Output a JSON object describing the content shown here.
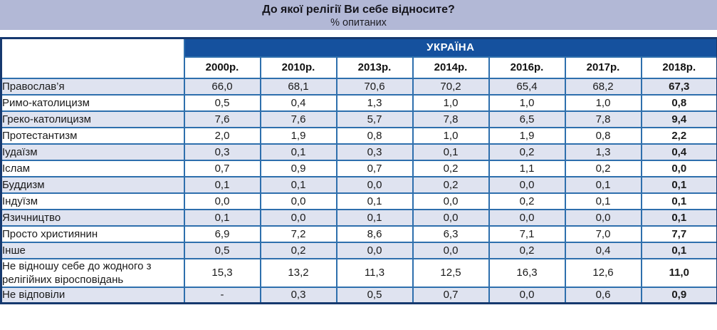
{
  "title": "До якої релігії Ви себе відносите?",
  "subtitle": "% опитаних",
  "table": {
    "region_header": "УКРАЇНА",
    "year_headers": [
      "2000р.",
      "2010р.",
      "2013р.",
      "2014р.",
      "2016р.",
      "2017р.",
      "2018р."
    ],
    "rows": [
      {
        "label": "Православ’я",
        "values": [
          "66,0",
          "68,1",
          "70,6",
          "70,2",
          "65,4",
          "68,2",
          "67,3"
        ]
      },
      {
        "label": "Римо-католицизм",
        "values": [
          "0,5",
          "0,4",
          "1,3",
          "1,0",
          "1,0",
          "1,0",
          "0,8"
        ]
      },
      {
        "label": "Греко-католицизм",
        "values": [
          "7,6",
          "7,6",
          "5,7",
          "7,8",
          "6,5",
          "7,8",
          "9,4"
        ]
      },
      {
        "label": "Протестантизм",
        "values": [
          "2,0",
          "1,9",
          "0,8",
          "1,0",
          "1,9",
          "0,8",
          "2,2"
        ]
      },
      {
        "label": "Іудаїзм",
        "values": [
          "0,3",
          "0,1",
          "0,3",
          "0,1",
          "0,2",
          "1,3",
          "0,4"
        ]
      },
      {
        "label": "Іслам",
        "values": [
          "0,7",
          "0,9",
          "0,7",
          "0,2",
          "1,1",
          "0,2",
          "0,0"
        ]
      },
      {
        "label": "Буддизм",
        "values": [
          "0,1",
          "0,1",
          "0,0",
          "0,2",
          "0,0",
          "0,1",
          "0,1"
        ]
      },
      {
        "label": "Індуїзм",
        "values": [
          "0,0",
          "0,0",
          "0,1",
          "0,0",
          "0,2",
          "0,1",
          "0,1"
        ]
      },
      {
        "label": "Язичництво",
        "values": [
          "0,1",
          "0,0",
          "0,1",
          "0,0",
          "0,0",
          "0,0",
          "0,1"
        ]
      },
      {
        "label": "Просто християнин",
        "values": [
          "6,9",
          "7,2",
          "8,6",
          "6,3",
          "7,1",
          "7,0",
          "7,7"
        ]
      },
      {
        "label": "Інше",
        "values": [
          "0,5",
          "0,2",
          "0,0",
          "0,0",
          "0,2",
          "0,4",
          "0,1"
        ]
      },
      {
        "label": "Не відношу себе до жодного з релігійних віросповідань",
        "values": [
          "15,3",
          "13,2",
          "11,3",
          "12,5",
          "16,3",
          "12,6",
          "11,0"
        ]
      },
      {
        "label": "Не відповіли",
        "values": [
          "-",
          "0,3",
          "0,5",
          "0,7",
          "0,0",
          "0,6",
          "0,9"
        ]
      }
    ]
  },
  "colors": {
    "title_band": "#b2b8d6",
    "region_band": "#15519e",
    "row_stripe": "#dfe3f0",
    "inner_border": "#2e6fad",
    "outer_border": "#16396f",
    "text": "#1a1a1a"
  },
  "chart_data": {
    "type": "table",
    "title": "До якої релігії Ви себе відносите?",
    "subtitle": "% опитаних",
    "region": "УКРАЇНА",
    "columns": [
      "2000р.",
      "2010р.",
      "2013р.",
      "2014р.",
      "2016р.",
      "2017р.",
      "2018р."
    ],
    "rows": [
      {
        "label": "Православ’я",
        "values": [
          66.0,
          68.1,
          70.6,
          70.2,
          65.4,
          68.2,
          67.3
        ]
      },
      {
        "label": "Римо-католицизм",
        "values": [
          0.5,
          0.4,
          1.3,
          1.0,
          1.0,
          1.0,
          0.8
        ]
      },
      {
        "label": "Греко-католицизм",
        "values": [
          7.6,
          7.6,
          5.7,
          7.8,
          6.5,
          7.8,
          9.4
        ]
      },
      {
        "label": "Протестантизм",
        "values": [
          2.0,
          1.9,
          0.8,
          1.0,
          1.9,
          0.8,
          2.2
        ]
      },
      {
        "label": "Іудаїзм",
        "values": [
          0.3,
          0.1,
          0.3,
          0.1,
          0.2,
          1.3,
          0.4
        ]
      },
      {
        "label": "Іслам",
        "values": [
          0.7,
          0.9,
          0.7,
          0.2,
          1.1,
          0.2,
          0.0
        ]
      },
      {
        "label": "Буддизм",
        "values": [
          0.1,
          0.1,
          0.0,
          0.2,
          0.0,
          0.1,
          0.1
        ]
      },
      {
        "label": "Індуїзм",
        "values": [
          0.0,
          0.0,
          0.1,
          0.0,
          0.2,
          0.1,
          0.1
        ]
      },
      {
        "label": "Язичництво",
        "values": [
          0.1,
          0.0,
          0.1,
          0.0,
          0.0,
          0.0,
          0.1
        ]
      },
      {
        "label": "Просто християнин",
        "values": [
          6.9,
          7.2,
          8.6,
          6.3,
          7.1,
          7.0,
          7.7
        ]
      },
      {
        "label": "Інше",
        "values": [
          0.5,
          0.2,
          0.0,
          0.0,
          0.2,
          0.4,
          0.1
        ]
      },
      {
        "label": "Не відношу себе до жодного з релігійних віросповідань",
        "values": [
          15.3,
          13.2,
          11.3,
          12.5,
          16.3,
          12.6,
          11.0
        ]
      },
      {
        "label": "Не відповіли",
        "values": [
          null,
          0.3,
          0.5,
          0.7,
          0.0,
          0.6,
          0.9
        ]
      }
    ],
    "unit": "percent",
    "notes": "Last column (2018р.) rendered bold; '-' means no data for 2000р."
  }
}
